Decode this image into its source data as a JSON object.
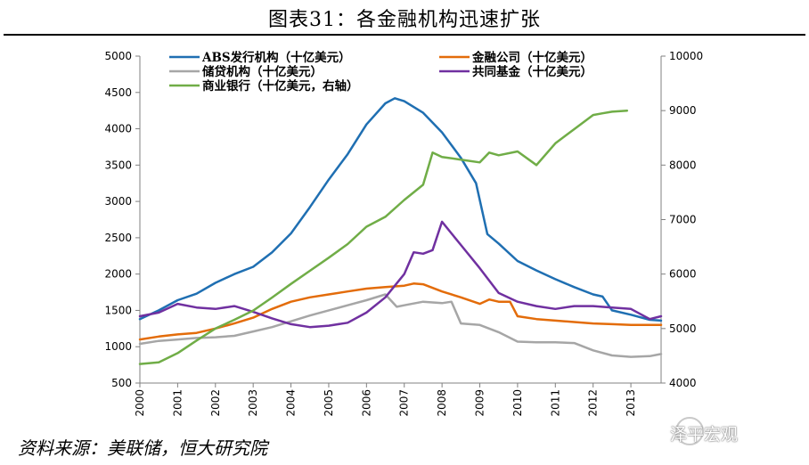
{
  "title": "图表31：各金融机构迅速扩张",
  "source": "资料来源：美联储，恒大研究院",
  "watermark": "泽平宏观",
  "chart_data": {
    "type": "line",
    "title": "图表31：各金融机构迅速扩张",
    "x_range": [
      2000,
      2013.8
    ],
    "x_ticks": [
      "2000",
      "2001",
      "2002",
      "2003",
      "2004",
      "2005",
      "2006",
      "2007",
      "2008",
      "2009",
      "2010",
      "2011",
      "2012",
      "2013"
    ],
    "ylim_left": [
      500,
      5000
    ],
    "y_ticks_left": [
      "500",
      "1000",
      "1500",
      "2000",
      "2500",
      "3000",
      "3500",
      "4000",
      "4500",
      "5000"
    ],
    "ylim_right": [
      4000,
      10000
    ],
    "y_ticks_right": [
      "4000",
      "5000",
      "6000",
      "7000",
      "8000",
      "9000",
      "10000"
    ],
    "series": [
      {
        "name": "ABS发行机构（十亿美元）",
        "color": "#1f6fb2",
        "axis": "left",
        "x": [
          2000,
          2000.5,
          2001,
          2001.5,
          2002,
          2002.5,
          2003,
          2003.5,
          2004,
          2004.5,
          2005,
          2005.5,
          2006,
          2006.5,
          2006.75,
          2007,
          2007.5,
          2008,
          2008.5,
          2008.9,
          2009.2,
          2009.5,
          2010,
          2010.5,
          2011,
          2011.5,
          2012,
          2012.25,
          2012.5,
          2013,
          2013.5,
          2013.8
        ],
        "values": [
          1380,
          1500,
          1640,
          1730,
          1880,
          2000,
          2100,
          2300,
          2560,
          2920,
          3300,
          3650,
          4060,
          4350,
          4420,
          4380,
          4220,
          3950,
          3600,
          3250,
          2550,
          2420,
          2180,
          2050,
          1930,
          1820,
          1720,
          1690,
          1500,
          1440,
          1370,
          1360
        ]
      },
      {
        "name": "金融公司（十亿美元）",
        "color": "#e36c0a",
        "axis": "left",
        "x": [
          2000,
          2000.5,
          2001,
          2001.5,
          2002,
          2002.5,
          2003,
          2003.5,
          2004,
          2004.5,
          2005,
          2005.5,
          2006,
          2006.5,
          2007,
          2007.25,
          2007.5,
          2008,
          2008.5,
          2009,
          2009.25,
          2009.5,
          2009.8,
          2010,
          2010.5,
          2011,
          2011.5,
          2012,
          2012.5,
          2013,
          2013.5,
          2013.8
        ],
        "values": [
          1100,
          1140,
          1170,
          1190,
          1250,
          1320,
          1400,
          1520,
          1620,
          1680,
          1720,
          1760,
          1800,
          1820,
          1840,
          1870,
          1860,
          1760,
          1680,
          1590,
          1650,
          1620,
          1620,
          1420,
          1380,
          1360,
          1340,
          1320,
          1310,
          1300,
          1300,
          1300
        ]
      },
      {
        "name": "储贷机构（十亿美元）",
        "color": "#a6a6a6",
        "axis": "left",
        "x": [
          2000,
          2000.5,
          2001,
          2001.5,
          2002,
          2002.5,
          2003,
          2003.5,
          2004,
          2004.5,
          2005,
          2005.5,
          2006,
          2006.5,
          2006.8,
          2007,
          2007.5,
          2008,
          2008.25,
          2008.5,
          2009,
          2009.5,
          2010,
          2010.5,
          2011,
          2011.5,
          2012,
          2012.5,
          2013,
          2013.5,
          2013.8
        ],
        "values": [
          1040,
          1080,
          1100,
          1120,
          1130,
          1150,
          1210,
          1270,
          1350,
          1430,
          1500,
          1570,
          1640,
          1720,
          1550,
          1570,
          1620,
          1600,
          1620,
          1320,
          1300,
          1200,
          1070,
          1060,
          1060,
          1050,
          950,
          880,
          860,
          870,
          900
        ]
      },
      {
        "name": "共同基金（十亿美元）",
        "color": "#7030a0",
        "axis": "left",
        "x": [
          2000,
          2000.5,
          2001,
          2001.5,
          2002,
          2002.5,
          2003,
          2003.5,
          2004,
          2004.5,
          2005,
          2005.5,
          2006,
          2006.5,
          2007,
          2007.25,
          2007.5,
          2007.75,
          2008,
          2008.25,
          2008.5,
          2009,
          2009.5,
          2010,
          2010.5,
          2011,
          2011.5,
          2012,
          2012.5,
          2013,
          2013.5,
          2013.8
        ],
        "values": [
          1420,
          1470,
          1590,
          1540,
          1520,
          1560,
          1480,
          1390,
          1310,
          1270,
          1290,
          1330,
          1470,
          1680,
          2000,
          2300,
          2280,
          2330,
          2720,
          2560,
          2400,
          2080,
          1740,
          1620,
          1560,
          1520,
          1560,
          1560,
          1540,
          1520,
          1380,
          1420
        ]
      },
      {
        "name": "商业银行（十亿美元，右轴）",
        "color": "#70ad47",
        "axis": "right",
        "x": [
          2000,
          2000.5,
          2001,
          2001.5,
          2002,
          2002.5,
          2003,
          2003.5,
          2004,
          2004.5,
          2005,
          2005.5,
          2006,
          2006.5,
          2007,
          2007.5,
          2007.75,
          2008,
          2008.5,
          2009,
          2009.25,
          2009.5,
          2010,
          2010.5,
          2011,
          2011.5,
          2012,
          2012.25,
          2012.5,
          2012.9
        ],
        "values": [
          4350,
          4380,
          4550,
          4780,
          5000,
          5160,
          5330,
          5570,
          5820,
          6060,
          6300,
          6550,
          6870,
          7050,
          7360,
          7640,
          8230,
          8150,
          8100,
          8050,
          8230,
          8180,
          8250,
          8000,
          8400,
          8660,
          8920,
          8950,
          8980,
          9000
        ]
      }
    ]
  }
}
